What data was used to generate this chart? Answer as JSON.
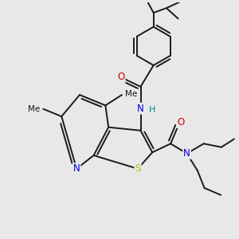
{
  "bg_color": "#e8e8e8",
  "bond_color": "#1a1a1a",
  "bond_width": 1.4,
  "atom_colors": {
    "N": "#0000dd",
    "H": "#008888",
    "O": "#cc0000",
    "S": "#bbbb00"
  }
}
